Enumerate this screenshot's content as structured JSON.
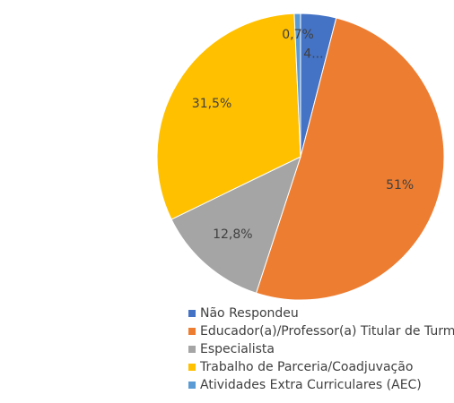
{
  "chart_data": {
    "type": "pie",
    "categories": [
      "Não Respondeu",
      "Educador(a)/Professor(a) Titular de Turma",
      "Especialista",
      "Trabalho de Parceria/Coadjuvação",
      "Atividades Extra Curriculares (AEC)"
    ],
    "values": [
      4,
      51,
      12.8,
      31.5,
      0.7
    ],
    "value_labels": [
      "4...",
      "51%",
      "12,8%",
      "31,5%",
      "0,7%"
    ],
    "colors": [
      "#4472c4",
      "#ed7d31",
      "#a5a5a5",
      "#ffc000",
      "#5b9bd5"
    ],
    "legend": "bottom-left"
  }
}
